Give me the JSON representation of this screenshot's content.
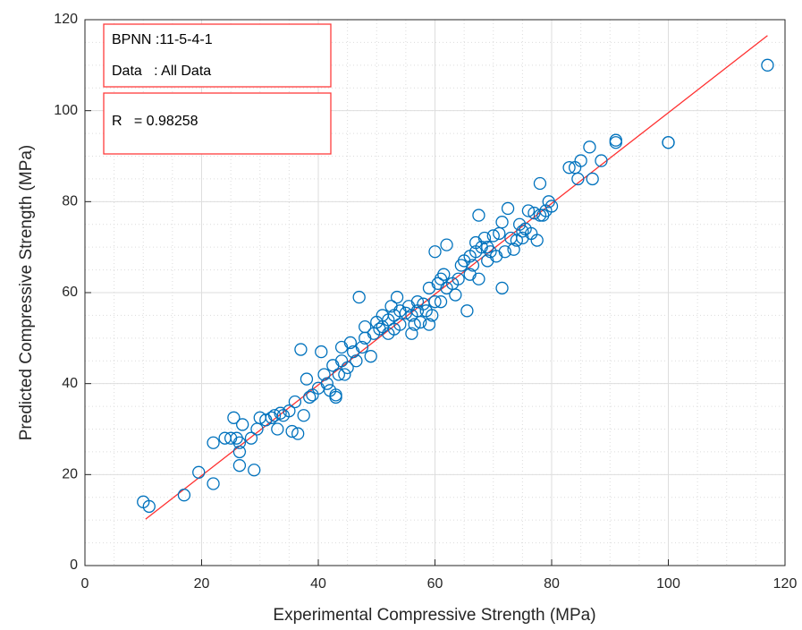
{
  "chart_data": {
    "type": "scatter",
    "xlabel": "Experimental Compressive Strength (MPa)",
    "ylabel": "Predicted Compressive Strength (MPa)",
    "annotations": [
      [
        "BPNN :11-5-4-1",
        "Data   : All Data"
      ],
      [
        "R   = 0.98258"
      ]
    ],
    "annotation_color": "#ff3b3b",
    "xlim": [
      0,
      120
    ],
    "ylim": [
      0,
      120
    ],
    "xticks": [
      0,
      20,
      40,
      60,
      80,
      100,
      120
    ],
    "yticks": [
      0,
      20,
      40,
      60,
      80,
      100,
      120
    ],
    "grid": true,
    "minor_grid": true,
    "minor_grid_step": 5,
    "color": "#0072bd",
    "x": [
      10,
      11,
      17,
      19.5,
      22,
      22,
      24,
      25,
      25.5,
      26,
      26.5,
      26.5,
      26.5,
      27,
      28.5,
      29,
      29.5,
      30,
      31,
      32,
      32.5,
      33,
      33.5,
      34,
      35,
      35.5,
      36,
      36.5,
      37,
      37.5,
      38,
      38.5,
      39,
      40,
      40.5,
      41,
      41.5,
      42,
      42.5,
      43,
      43,
      43.5,
      44,
      44,
      44.5,
      45,
      45.5,
      46,
      46.5,
      47,
      47.5,
      48,
      48,
      49,
      49.5,
      50,
      50.5,
      51,
      51,
      52,
      52,
      52.5,
      53,
      53,
      53.5,
      54,
      54,
      55,
      55.5,
      56,
      56,
      56.5,
      57,
      57,
      57.5,
      58,
      58.5,
      59,
      59,
      59.5,
      60,
      60,
      60.5,
      61,
      61,
      61.5,
      62,
      62,
      63,
      63.5,
      64,
      64.5,
      65,
      65.5,
      66,
      66,
      66.5,
      67,
      67,
      67.5,
      67.5,
      68,
      68.5,
      69,
      69,
      69.5,
      70,
      70.5,
      71,
      71.5,
      71.5,
      72,
      72.5,
      73,
      73.5,
      74,
      74.5,
      75,
      75,
      75.5,
      76,
      76.5,
      77,
      77.5,
      78,
      78,
      78.5,
      79,
      79.5,
      80,
      83,
      84,
      84.5,
      85,
      86.5,
      87,
      88.5,
      91,
      91,
      100,
      100,
      117
    ],
    "y": [
      14,
      13,
      15.5,
      20.5,
      18,
      27,
      28,
      28,
      32.5,
      28,
      25,
      22,
      27,
      31,
      28,
      21,
      30,
      32.5,
      32,
      32.5,
      33,
      30,
      33.5,
      33,
      34,
      29.5,
      36,
      29,
      47.5,
      33,
      41,
      37,
      37.5,
      39,
      47,
      42,
      40,
      38.5,
      44,
      37,
      37.5,
      42,
      48,
      45,
      42,
      43.5,
      49,
      47,
      45,
      59,
      48,
      52.5,
      50,
      46,
      51,
      53.5,
      52,
      55,
      52.5,
      54,
      51,
      57,
      55,
      52,
      59,
      56,
      53,
      55.5,
      57,
      51,
      55,
      53,
      58,
      56,
      53.5,
      57.5,
      56,
      53,
      61,
      55,
      69,
      58,
      62,
      58,
      63,
      64,
      70.5,
      61,
      62,
      59.5,
      63,
      66,
      67,
      56,
      64,
      68,
      66,
      71,
      69,
      77,
      63,
      70,
      72,
      67,
      70,
      69,
      72.5,
      68,
      73,
      75.5,
      61,
      69,
      78.5,
      72,
      69.5,
      71.5,
      75,
      73.5,
      72,
      74,
      78,
      73,
      77.5,
      71.5,
      84,
      77,
      77,
      78,
      80,
      79,
      87.5,
      87.5,
      85,
      89,
      92,
      85,
      89,
      93,
      93.5,
      93,
      93,
      110
    ],
    "fit_line": {
      "x": [
        10.4,
        117
      ],
      "y": [
        10.2,
        116.5
      ],
      "color": "#ff3030"
    }
  }
}
